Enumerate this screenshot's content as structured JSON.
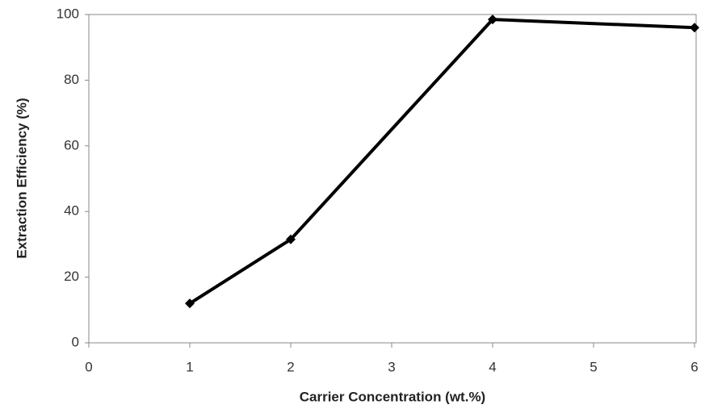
{
  "chart_data": {
    "type": "line",
    "x": [
      1,
      2,
      4,
      6
    ],
    "values": [
      12,
      31.5,
      98.5,
      96
    ],
    "color": "#000000",
    "xlabel": "Carrier Concentration (wt.%)",
    "ylabel": "Extraction Efficiency (%)",
    "xlim": [
      0,
      6
    ],
    "xticks": [
      0,
      1,
      2,
      3,
      4,
      5,
      6
    ],
    "ylim": [
      0,
      100
    ],
    "yticks": [
      0,
      20,
      40,
      60,
      80,
      100
    ],
    "grid": false
  }
}
